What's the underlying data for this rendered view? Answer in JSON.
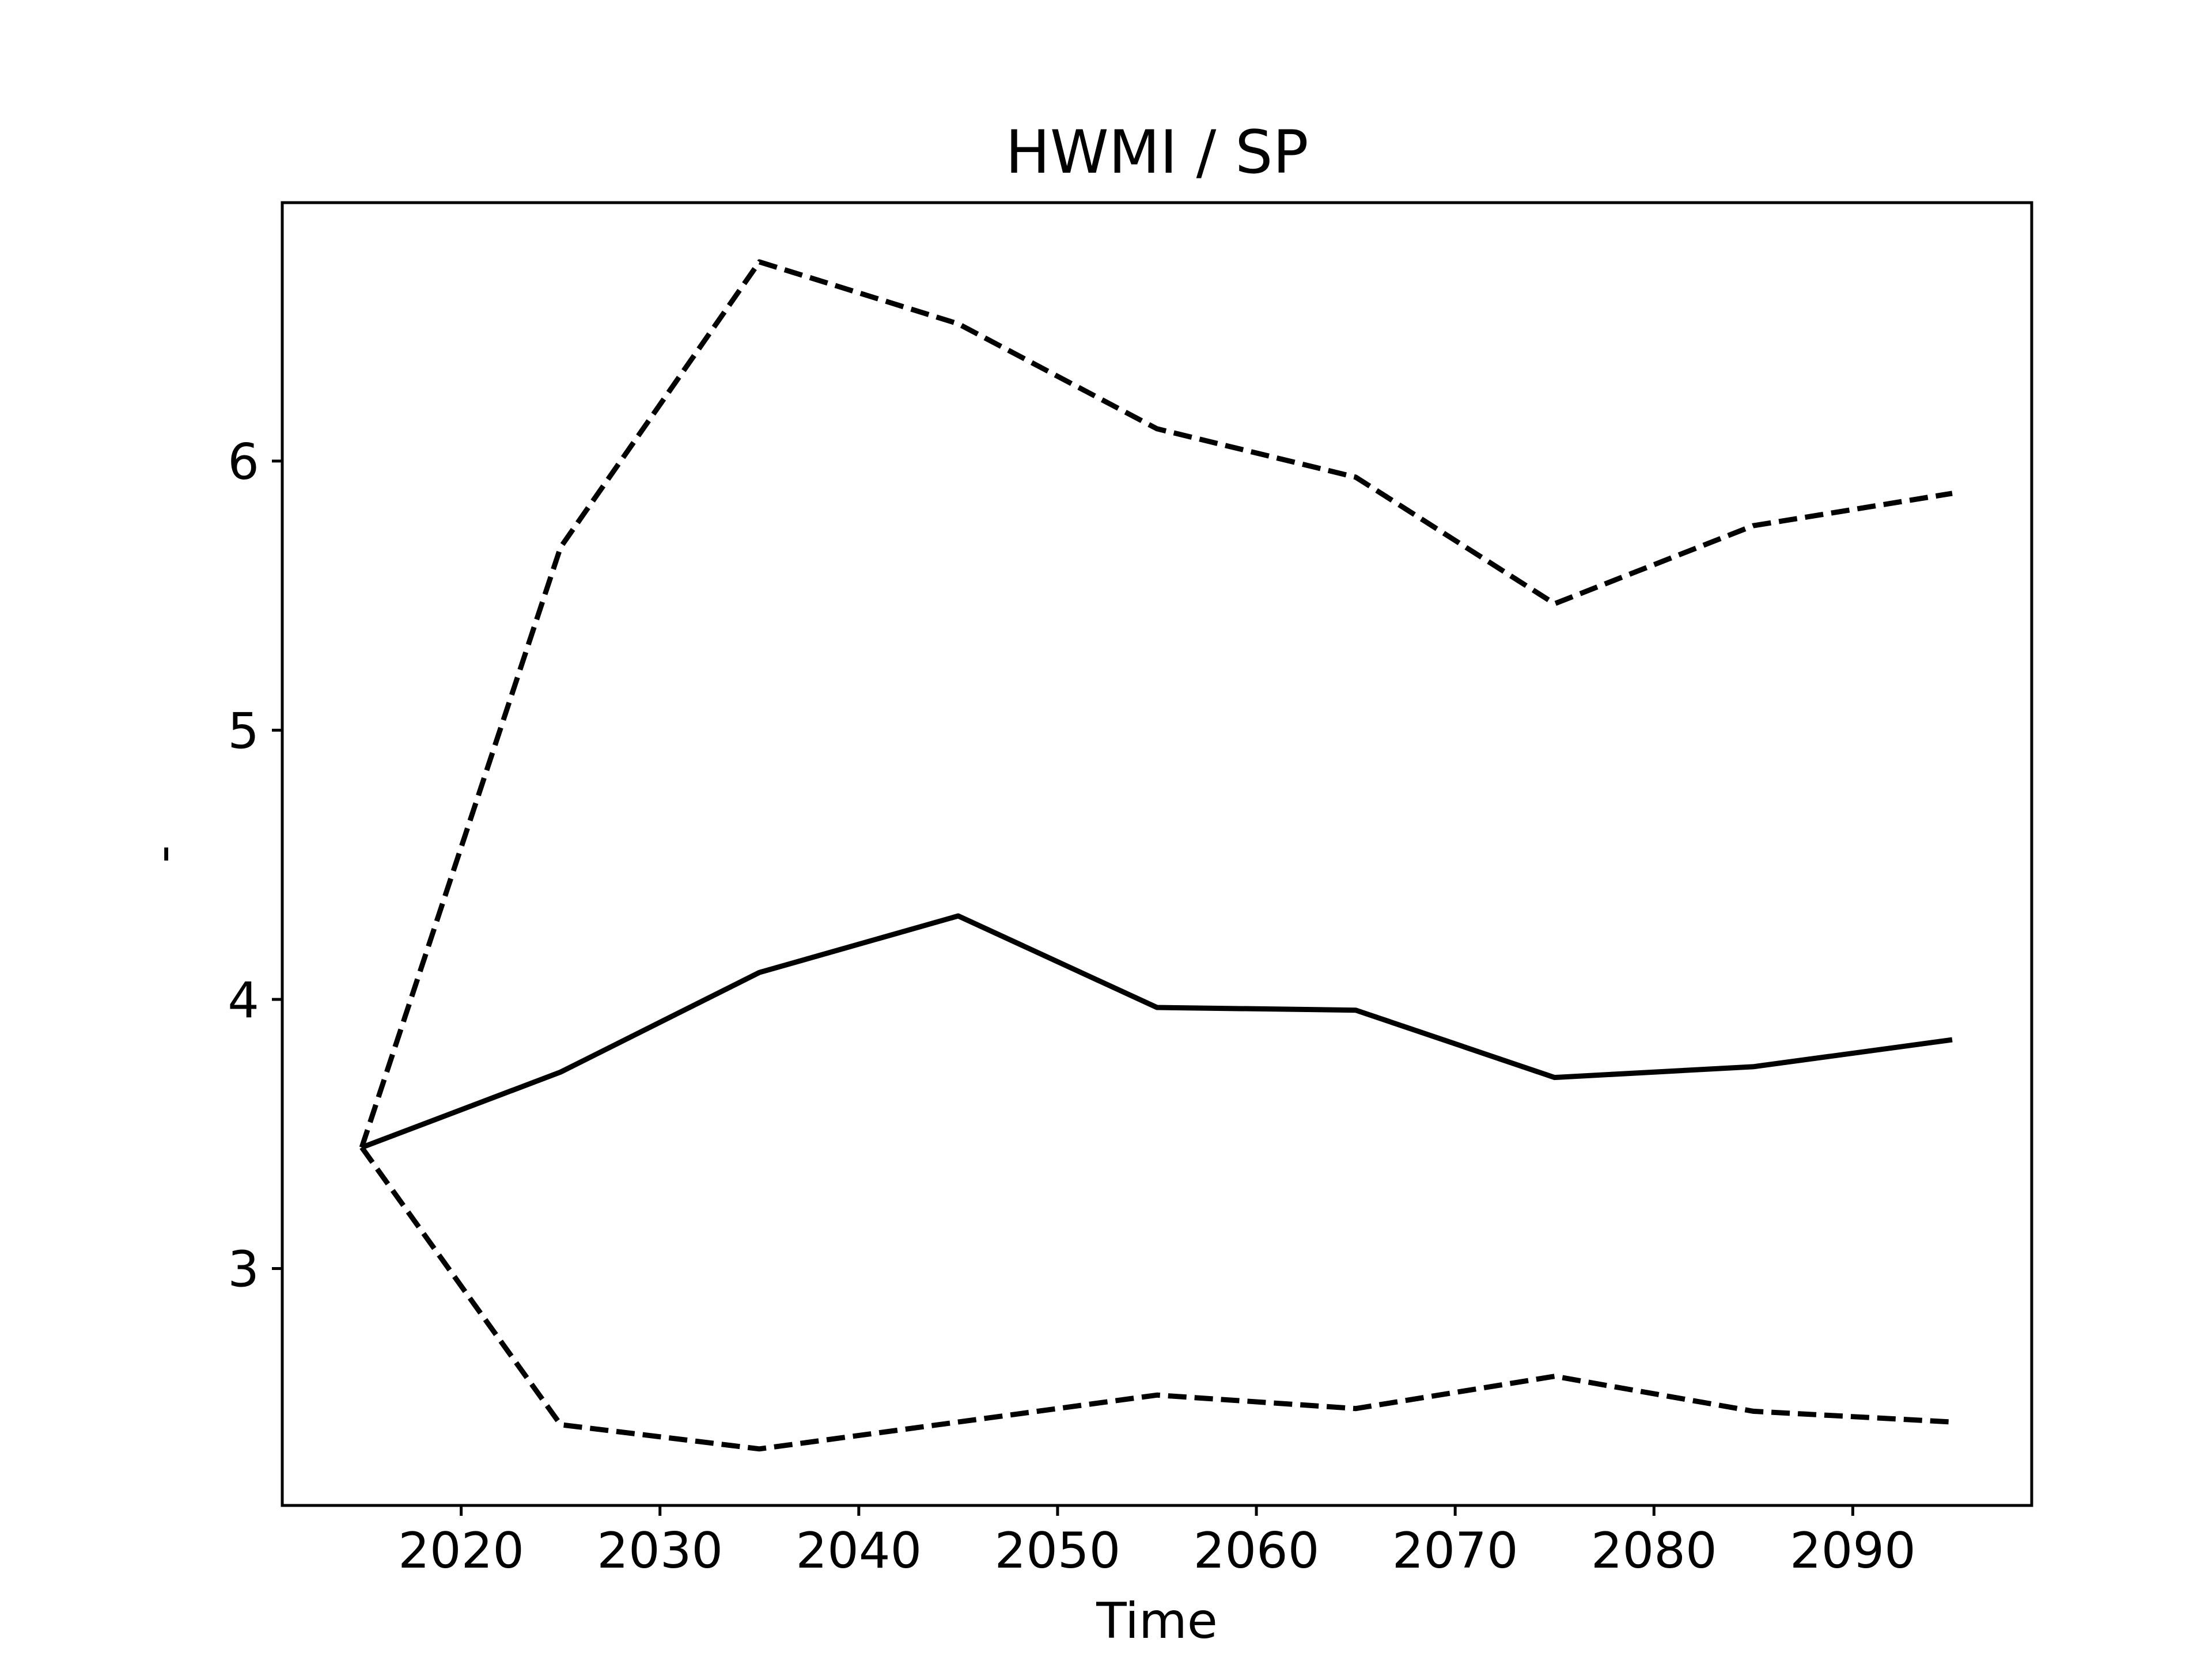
{
  "chart_data": {
    "type": "line",
    "title": "HWMI / SP",
    "xlabel": "Time",
    "ylabel": "-",
    "x": [
      2015,
      2025,
      2035,
      2045,
      2055,
      2065,
      2075,
      2085,
      2095
    ],
    "xlim": [
      2011,
      2099
    ],
    "ylim": [
      2.12,
      6.96
    ],
    "xticks": [
      2020,
      2030,
      2040,
      2050,
      2060,
      2070,
      2080,
      2090
    ],
    "yticks": [
      3,
      4,
      5,
      6
    ],
    "grid": false,
    "series": [
      {
        "style": "solid",
        "color": "#000000",
        "values": [
          3.45,
          3.73,
          4.1,
          4.31,
          3.97,
          3.96,
          3.71,
          3.75,
          3.85
        ]
      },
      {
        "style": "dashed",
        "color": "#000000",
        "values": [
          3.45,
          5.68,
          6.74,
          6.51,
          6.12,
          5.94,
          5.47,
          5.76,
          5.88
        ]
      },
      {
        "style": "dashed",
        "color": "#000000",
        "values": [
          3.45,
          2.42,
          2.33,
          2.43,
          2.53,
          2.48,
          2.6,
          2.47,
          2.43
        ]
      }
    ]
  }
}
